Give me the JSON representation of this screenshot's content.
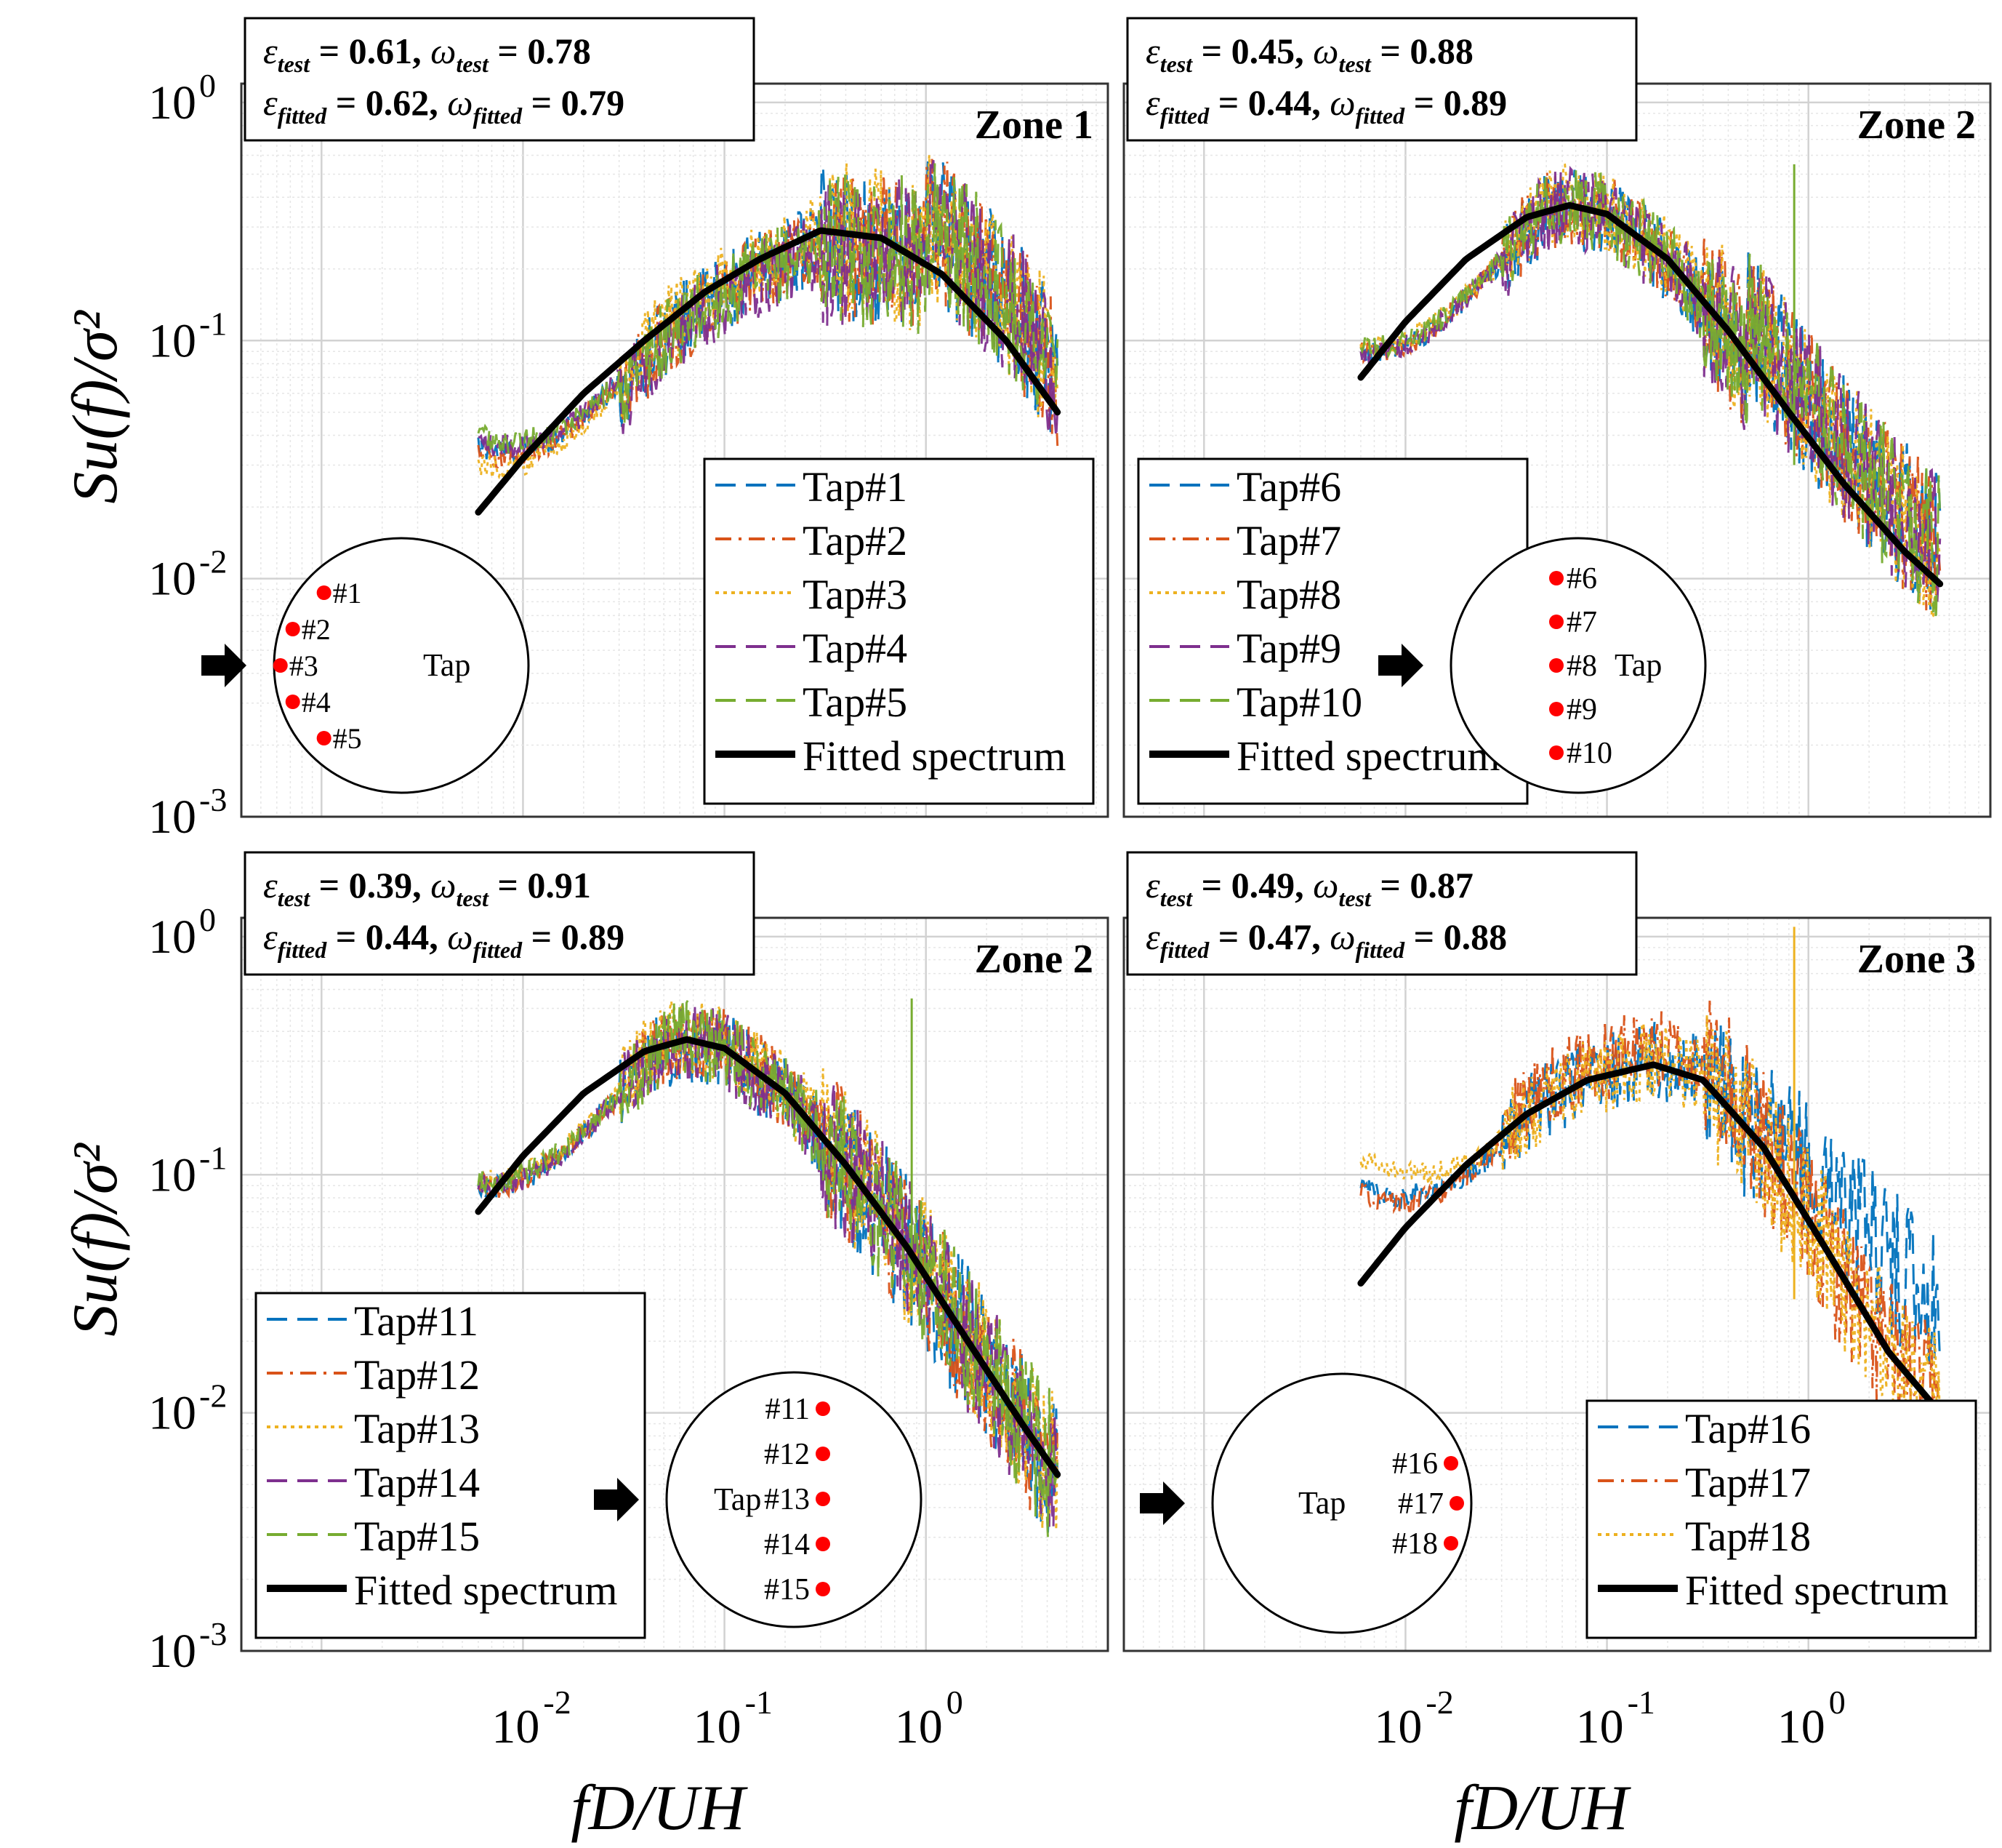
{
  "figure": {
    "y_axis_label": "Su(f)/σ²",
    "x_axis_label": "fD/UH",
    "y_ticks": [
      {
        "label": "10",
        "exp": "0",
        "value": 1
      },
      {
        "label": "10",
        "exp": "-1",
        "value": 0.1
      },
      {
        "label": "10",
        "exp": "-2",
        "value": 0.01
      },
      {
        "label": "10",
        "exp": "-3",
        "value": 0.001
      }
    ],
    "x_ticks": [
      {
        "label": "10",
        "exp": "-2",
        "value": 0.01
      },
      {
        "label": "10",
        "exp": "-1",
        "value": 0.1
      },
      {
        "label": "10",
        "exp": "0",
        "value": 1
      }
    ]
  },
  "chart_data": [
    {
      "type": "line",
      "scale": "log-log",
      "zone_label": "Zone 1",
      "xlim": [
        0.0004,
        8
      ],
      "ylim": [
        0.001,
        1.2
      ],
      "grid": true,
      "params": {
        "eps_test": "0.61",
        "omega_test": "0.78",
        "eps_fitted": "0.62",
        "omega_fitted": "0.79"
      },
      "fitted": {
        "name": "Fitted spectrum",
        "x": [
          0.006,
          0.01,
          0.02,
          0.04,
          0.08,
          0.15,
          0.3,
          0.6,
          1.2,
          2.5,
          4.5
        ],
        "y": [
          0.019,
          0.032,
          0.06,
          0.1,
          0.16,
          0.22,
          0.29,
          0.27,
          0.19,
          0.1,
          0.05
        ]
      },
      "series": [
        {
          "name": "Tap#1",
          "color": "#0072BD",
          "dash": "28,14",
          "peak": 0.26,
          "y_start": 0.036
        },
        {
          "name": "Tap#2",
          "color": "#D95319",
          "dash": "22,10,4,10",
          "peak": 0.25,
          "y_start": 0.034
        },
        {
          "name": "Tap#3",
          "color": "#EDB120",
          "dash": "5,6",
          "peak": 0.28,
          "y_start": 0.03
        },
        {
          "name": "Tap#4",
          "color": "#7E2F8E",
          "dash": "28,14",
          "peak": 0.24,
          "y_start": 0.038
        },
        {
          "name": "Tap#5",
          "color": "#77AC30",
          "dash": "28,14",
          "peak": 0.25,
          "y_start": 0.04
        }
      ],
      "legend_position": "bottom-right",
      "taps_diagram": {
        "taps": [
          "#1",
          "#2",
          "#3",
          "#4",
          "#5"
        ],
        "label": "Tap",
        "side": "left"
      }
    },
    {
      "type": "line",
      "scale": "log-log",
      "zone_label": "Zone 2",
      "xlim": [
        0.0004,
        8
      ],
      "ylim": [
        0.001,
        1.2
      ],
      "grid": true,
      "params": {
        "eps_test": "0.45",
        "omega_test": "0.88",
        "eps_fitted": "0.44",
        "omega_fitted": "0.89"
      },
      "fitted": {
        "name": "Fitted spectrum",
        "x": [
          0.006,
          0.01,
          0.02,
          0.04,
          0.065,
          0.1,
          0.2,
          0.4,
          0.8,
          1.5,
          3,
          4.5
        ],
        "y": [
          0.07,
          0.12,
          0.22,
          0.33,
          0.37,
          0.34,
          0.22,
          0.11,
          0.05,
          0.025,
          0.013,
          0.0095
        ]
      },
      "series": [
        {
          "name": "Tap#6",
          "color": "#0072BD",
          "dash": "28,14",
          "peak": 0.36,
          "y_start": 0.09
        },
        {
          "name": "Tap#7",
          "color": "#D95319",
          "dash": "22,10,4,10",
          "peak": 0.37,
          "y_start": 0.09
        },
        {
          "name": "Tap#8",
          "color": "#EDB120",
          "dash": "5,6",
          "peak": 0.38,
          "y_start": 0.095
        },
        {
          "name": "Tap#9",
          "color": "#7E2F8E",
          "dash": "28,14",
          "peak": 0.36,
          "y_start": 0.09
        },
        {
          "name": "Tap#10",
          "color": "#77AC30",
          "dash": "28,14",
          "peak": 0.37,
          "y_start": 0.095
        }
      ],
      "legend_position": "bottom-left",
      "taps_diagram": {
        "taps": [
          "#6",
          "#7",
          "#8",
          "#9",
          "#10"
        ],
        "label": "Tap",
        "side": "center"
      }
    },
    {
      "type": "line",
      "scale": "log-log",
      "zone_label": "Zone 2",
      "xlim": [
        0.0004,
        8
      ],
      "ylim": [
        0.001,
        1.2
      ],
      "grid": true,
      "params": {
        "eps_test": "0.39",
        "omega_test": "0.91",
        "eps_fitted": "0.44",
        "omega_fitted": "0.89"
      },
      "fitted": {
        "name": "Fitted spectrum",
        "x": [
          0.006,
          0.01,
          0.02,
          0.04,
          0.065,
          0.1,
          0.2,
          0.4,
          0.8,
          1.5,
          3,
          4.5
        ],
        "y": [
          0.07,
          0.12,
          0.22,
          0.33,
          0.37,
          0.34,
          0.22,
          0.11,
          0.05,
          0.022,
          0.009,
          0.0055
        ]
      },
      "series": [
        {
          "name": "Tap#11",
          "color": "#0072BD",
          "dash": "28,14",
          "peak": 0.36,
          "y_start": 0.09
        },
        {
          "name": "Tap#12",
          "color": "#D95319",
          "dash": "22,10,4,10",
          "peak": 0.37,
          "y_start": 0.09
        },
        {
          "name": "Tap#13",
          "color": "#EDB120",
          "dash": "5,6",
          "peak": 0.38,
          "y_start": 0.095
        },
        {
          "name": "Tap#14",
          "color": "#7E2F8E",
          "dash": "28,14",
          "peak": 0.36,
          "y_start": 0.09
        },
        {
          "name": "Tap#15",
          "color": "#77AC30",
          "dash": "28,14",
          "peak": 0.37,
          "y_start": 0.095
        }
      ],
      "legend_position": "bottom-left",
      "taps_diagram": {
        "taps": [
          "#11",
          "#12",
          "#13",
          "#14",
          "#15"
        ],
        "label": "Tap",
        "side": "right"
      }
    },
    {
      "type": "line",
      "scale": "log-log",
      "zone_label": "Zone 3",
      "xlim": [
        0.0004,
        8
      ],
      "ylim": [
        0.001,
        1.2
      ],
      "grid": true,
      "params": {
        "eps_test": "0.49",
        "omega_test": "0.87",
        "eps_fitted": "0.47",
        "omega_fitted": "0.88"
      },
      "fitted": {
        "name": "Fitted spectrum",
        "x": [
          0.006,
          0.01,
          0.02,
          0.04,
          0.08,
          0.17,
          0.3,
          0.6,
          1.2,
          2.5,
          4.5
        ],
        "y": [
          0.035,
          0.06,
          0.11,
          0.18,
          0.25,
          0.29,
          0.25,
          0.13,
          0.05,
          0.018,
          0.01
        ]
      },
      "series": [
        {
          "name": "Tap#16",
          "color": "#0072BD",
          "dash": "28,14",
          "peak": 0.3,
          "y_start": 0.09
        },
        {
          "name": "Tap#17",
          "color": "#D95319",
          "dash": "22,10,4,10",
          "peak": 0.34,
          "y_start": 0.085
        },
        {
          "name": "Tap#18",
          "color": "#EDB120",
          "dash": "5,6",
          "peak": 0.3,
          "y_start": 0.12
        }
      ],
      "legend_position": "bottom-right",
      "taps_diagram": {
        "taps": [
          "#16",
          "#17",
          "#18"
        ],
        "label": "Tap",
        "side": "right"
      }
    }
  ]
}
